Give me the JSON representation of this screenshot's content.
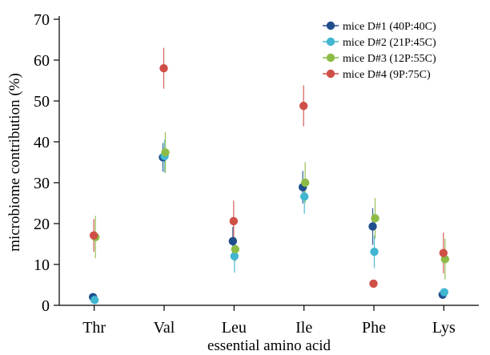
{
  "chart_data": {
    "type": "scatter",
    "title": "",
    "xlabel": "essential amino acid",
    "ylabel": "microbiome contribution (%)",
    "categories": [
      "Thr",
      "Val",
      "Leu",
      "Ile",
      "Phe",
      "Lys"
    ],
    "ylim": [
      0,
      70
    ],
    "yticks": [
      0,
      10,
      20,
      30,
      40,
      50,
      60,
      70
    ],
    "grid": false,
    "legend_position": "top-right",
    "series": [
      {
        "name": "mice D#1 (40P:40C)",
        "color": "#1f4e8c",
        "values": [
          2.0,
          36.2,
          15.7,
          28.9,
          19.3,
          2.6
        ],
        "err": [
          0.8,
          3.5,
          3.5,
          4.0,
          4.5,
          0.8
        ]
      },
      {
        "name": "mice D#2 (21P:45C)",
        "color": "#41b6d0",
        "values": [
          1.3,
          36.5,
          12.0,
          26.6,
          13.1,
          3.2
        ],
        "err": [
          0.6,
          4.0,
          4.0,
          4.2,
          4.0,
          0.9
        ]
      },
      {
        "name": "mice D#3 (12P:55C)",
        "color": "#8cbc45",
        "values": [
          16.7,
          37.4,
          13.7,
          30.0,
          21.3,
          11.3
        ],
        "err": [
          5.2,
          5.0,
          3.0,
          5.0,
          5.0,
          5.0
        ]
      },
      {
        "name": "mice D#4 (9P:75C)",
        "color": "#cf4f47",
        "values": [
          17.1,
          58.0,
          20.6,
          48.8,
          5.3,
          12.8
        ],
        "err": [
          4.0,
          5.0,
          5.0,
          5.0,
          0.7,
          5.0
        ]
      }
    ]
  }
}
